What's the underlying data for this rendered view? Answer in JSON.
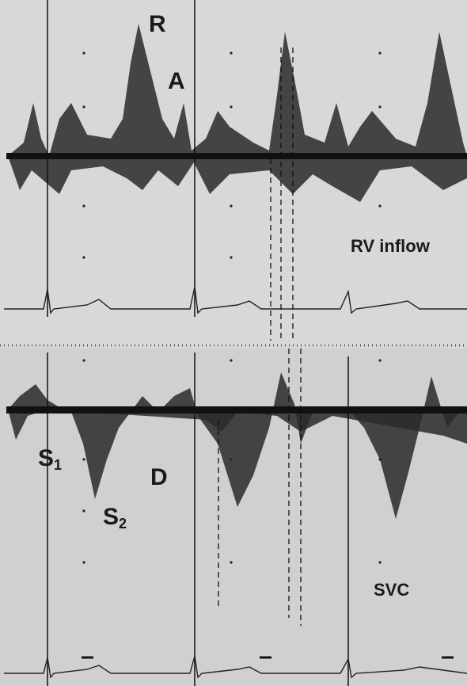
{
  "labels": {
    "r": "R",
    "a": "A",
    "rv_inflow": "RV inflow",
    "s1": {
      "text": "S",
      "sub": "1"
    },
    "d": "D",
    "s2": {
      "text": "S",
      "sub": "2"
    },
    "svc": "SVC"
  }
}
